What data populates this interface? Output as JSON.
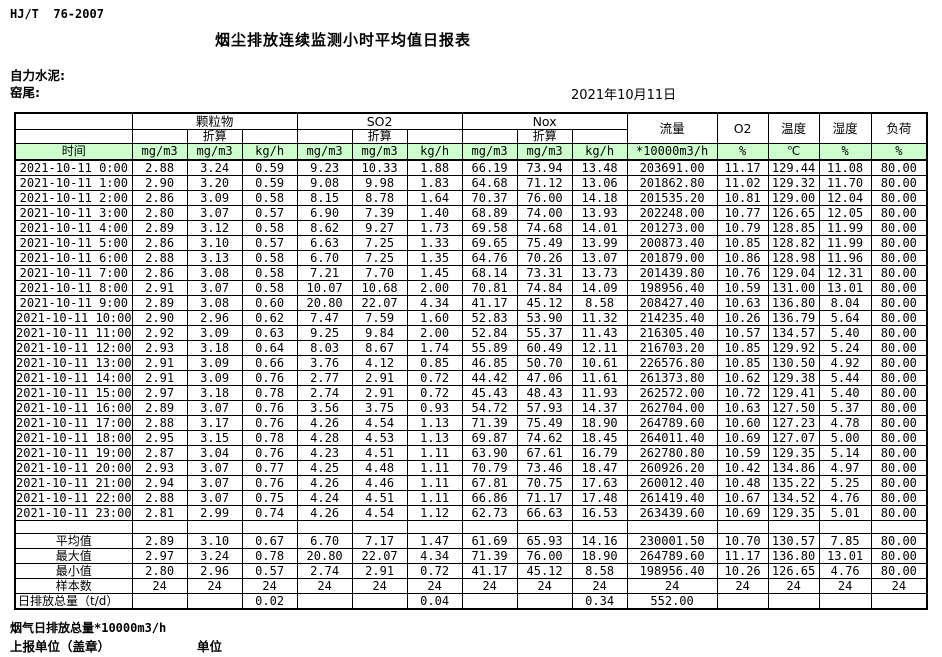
{
  "page": {
    "standard_code": "HJ/T  76-2007",
    "title": "烟尘排放连续监测小时平均值日报表",
    "company": "自力水泥:",
    "location": "窑尾:",
    "date": "2021年10月11日",
    "footer_note": "烟气日排放总量*10000m3/h",
    "footer_report_unit": "上报单位（盖章）",
    "footer_unit": "单位"
  },
  "colors": {
    "header_green": "#ccffcc",
    "border": "#000000"
  },
  "table": {
    "header": {
      "time": "时间",
      "groups": [
        {
          "label": "颗粒物"
        },
        {
          "label": "SO2"
        },
        {
          "label": "Nox"
        }
      ],
      "converted": "折算",
      "flow": "流量",
      "o2": "O2",
      "temperature": "温度",
      "humidity": "湿度",
      "load": "负荷",
      "units": [
        "mg/m3",
        "mg/m3",
        "kg/h",
        "mg/m3",
        "mg/m3",
        "kg/h",
        "mg/m3",
        "mg/m3",
        "kg/h",
        "*10000m3/h",
        "%",
        "℃",
        "%",
        "%"
      ]
    },
    "rows": [
      {
        "time": "2021-10-11 0:00",
        "values": [
          "2.88",
          "3.24",
          "0.59",
          "9.23",
          "10.33",
          "1.88",
          "66.19",
          "73.94",
          "13.48",
          "203691.00",
          "11.17",
          "129.44",
          "11.08",
          "80.00"
        ]
      },
      {
        "time": "2021-10-11 1:00",
        "values": [
          "2.90",
          "3.20",
          "0.59",
          "9.08",
          "9.98",
          "1.83",
          "64.68",
          "71.12",
          "13.06",
          "201862.80",
          "11.02",
          "129.32",
          "11.70",
          "80.00"
        ]
      },
      {
        "time": "2021-10-11 2:00",
        "values": [
          "2.86",
          "3.09",
          "0.58",
          "8.15",
          "8.78",
          "1.64",
          "70.37",
          "76.00",
          "14.18",
          "201535.20",
          "10.81",
          "129.00",
          "12.04",
          "80.00"
        ]
      },
      {
        "time": "2021-10-11 3:00",
        "values": [
          "2.80",
          "3.07",
          "0.57",
          "6.90",
          "7.39",
          "1.40",
          "68.89",
          "74.00",
          "13.93",
          "202248.00",
          "10.77",
          "126.65",
          "12.05",
          "80.00"
        ]
      },
      {
        "time": "2021-10-11 4:00",
        "values": [
          "2.89",
          "3.12",
          "0.58",
          "8.62",
          "9.27",
          "1.73",
          "69.58",
          "74.68",
          "14.01",
          "201273.00",
          "10.79",
          "128.85",
          "11.99",
          "80.00"
        ]
      },
      {
        "time": "2021-10-11 5:00",
        "values": [
          "2.86",
          "3.10",
          "0.57",
          "6.63",
          "7.25",
          "1.33",
          "69.65",
          "75.49",
          "13.99",
          "200873.40",
          "10.85",
          "128.82",
          "11.99",
          "80.00"
        ]
      },
      {
        "time": "2021-10-11 6:00",
        "values": [
          "2.88",
          "3.13",
          "0.58",
          "6.70",
          "7.25",
          "1.35",
          "64.76",
          "70.26",
          "13.07",
          "201879.00",
          "10.86",
          "128.98",
          "11.96",
          "80.00"
        ]
      },
      {
        "time": "2021-10-11 7:00",
        "values": [
          "2.86",
          "3.08",
          "0.58",
          "7.21",
          "7.70",
          "1.45",
          "68.14",
          "73.31",
          "13.73",
          "201439.80",
          "10.76",
          "129.04",
          "12.31",
          "80.00"
        ]
      },
      {
        "time": "2021-10-11 8:00",
        "values": [
          "2.91",
          "3.07",
          "0.58",
          "10.07",
          "10.68",
          "2.00",
          "70.81",
          "74.84",
          "14.09",
          "198956.40",
          "10.59",
          "131.00",
          "13.01",
          "80.00"
        ]
      },
      {
        "time": "2021-10-11 9:00",
        "values": [
          "2.89",
          "3.08",
          "0.60",
          "20.80",
          "22.07",
          "4.34",
          "41.17",
          "45.12",
          "8.58",
          "208427.40",
          "10.63",
          "136.80",
          "8.04",
          "80.00"
        ]
      },
      {
        "time": "2021-10-11 10:00",
        "values": [
          "2.90",
          "2.96",
          "0.62",
          "7.47",
          "7.59",
          "1.60",
          "52.83",
          "53.90",
          "11.32",
          "214235.40",
          "10.26",
          "136.79",
          "5.64",
          "80.00"
        ]
      },
      {
        "time": "2021-10-11 11:00",
        "values": [
          "2.92",
          "3.09",
          "0.63",
          "9.25",
          "9.84",
          "2.00",
          "52.84",
          "55.37",
          "11.43",
          "216305.40",
          "10.57",
          "134.57",
          "5.40",
          "80.00"
        ]
      },
      {
        "time": "2021-10-11 12:00",
        "values": [
          "2.93",
          "3.18",
          "0.64",
          "8.03",
          "8.67",
          "1.74",
          "55.89",
          "60.49",
          "12.11",
          "216703.20",
          "10.85",
          "129.92",
          "5.24",
          "80.00"
        ]
      },
      {
        "time": "2021-10-11 13:00",
        "values": [
          "2.91",
          "3.09",
          "0.66",
          "3.76",
          "4.12",
          "0.85",
          "46.85",
          "50.70",
          "10.61",
          "226576.80",
          "10.85",
          "130.50",
          "4.92",
          "80.00"
        ]
      },
      {
        "time": "2021-10-11 14:00",
        "values": [
          "2.91",
          "3.09",
          "0.76",
          "2.77",
          "2.91",
          "0.72",
          "44.42",
          "47.06",
          "11.61",
          "261373.80",
          "10.62",
          "129.38",
          "5.44",
          "80.00"
        ]
      },
      {
        "time": "2021-10-11 15:00",
        "values": [
          "2.97",
          "3.18",
          "0.78",
          "2.74",
          "2.91",
          "0.72",
          "45.43",
          "48.43",
          "11.93",
          "262572.00",
          "10.72",
          "129.41",
          "5.40",
          "80.00"
        ]
      },
      {
        "time": "2021-10-11 16:00",
        "values": [
          "2.89",
          "3.07",
          "0.76",
          "3.56",
          "3.75",
          "0.93",
          "54.72",
          "57.93",
          "14.37",
          "262704.00",
          "10.63",
          "127.50",
          "5.37",
          "80.00"
        ]
      },
      {
        "time": "2021-10-11 17:00",
        "values": [
          "2.88",
          "3.17",
          "0.76",
          "4.26",
          "4.54",
          "1.13",
          "71.39",
          "75.49",
          "18.90",
          "264789.60",
          "10.60",
          "127.23",
          "4.78",
          "80.00"
        ]
      },
      {
        "time": "2021-10-11 18:00",
        "values": [
          "2.95",
          "3.15",
          "0.78",
          "4.28",
          "4.53",
          "1.13",
          "69.87",
          "74.62",
          "18.45",
          "264011.40",
          "10.69",
          "127.07",
          "5.00",
          "80.00"
        ]
      },
      {
        "time": "2021-10-11 19:00",
        "values": [
          "2.87",
          "3.04",
          "0.76",
          "4.23",
          "4.51",
          "1.11",
          "63.90",
          "67.61",
          "16.79",
          "262780.80",
          "10.59",
          "129.35",
          "5.14",
          "80.00"
        ]
      },
      {
        "time": "2021-10-11 20:00",
        "values": [
          "2.93",
          "3.07",
          "0.77",
          "4.25",
          "4.48",
          "1.11",
          "70.79",
          "73.46",
          "18.47",
          "260926.20",
          "10.42",
          "134.86",
          "4.97",
          "80.00"
        ]
      },
      {
        "time": "2021-10-11 21:00",
        "values": [
          "2.94",
          "3.07",
          "0.76",
          "4.26",
          "4.46",
          "1.11",
          "67.81",
          "70.75",
          "17.63",
          "260012.40",
          "10.48",
          "135.22",
          "5.25",
          "80.00"
        ]
      },
      {
        "time": "2021-10-11 22:00",
        "values": [
          "2.88",
          "3.07",
          "0.75",
          "4.24",
          "4.51",
          "1.11",
          "66.86",
          "71.17",
          "17.48",
          "261419.40",
          "10.67",
          "134.52",
          "4.76",
          "80.00"
        ]
      },
      {
        "time": "2021-10-11 23:00",
        "values": [
          "2.81",
          "2.99",
          "0.74",
          "4.26",
          "4.54",
          "1.12",
          "62.73",
          "66.63",
          "16.53",
          "263439.60",
          "10.69",
          "129.35",
          "5.01",
          "80.00"
        ]
      }
    ],
    "summary": [
      {
        "label": "平均值",
        "values": [
          "2.89",
          "3.10",
          "0.67",
          "6.70",
          "7.17",
          "1.47",
          "61.69",
          "65.93",
          "14.16",
          "230001.50",
          "10.70",
          "130.57",
          "7.85",
          "80.00"
        ]
      },
      {
        "label": "最大值",
        "values": [
          "2.97",
          "3.24",
          "0.78",
          "20.80",
          "22.07",
          "4.34",
          "71.39",
          "76.00",
          "18.90",
          "264789.60",
          "11.17",
          "136.80",
          "13.01",
          "80.00"
        ]
      },
      {
        "label": "最小值",
        "values": [
          "2.80",
          "2.96",
          "0.57",
          "2.74",
          "2.91",
          "0.72",
          "41.17",
          "45.12",
          "8.58",
          "198956.40",
          "10.26",
          "126.65",
          "4.76",
          "80.00"
        ]
      },
      {
        "label": "样本数",
        "values": [
          "24",
          "24",
          "24",
          "24",
          "24",
          "24",
          "24",
          "24",
          "24",
          "24",
          "24",
          "24",
          "24",
          "24"
        ]
      },
      {
        "label": "日排放总量（t/d）",
        "values": [
          "",
          "",
          "0.02",
          "",
          "",
          "0.04",
          "",
          "",
          "0.34",
          "552.00",
          "",
          "",
          "",
          ""
        ]
      }
    ]
  }
}
